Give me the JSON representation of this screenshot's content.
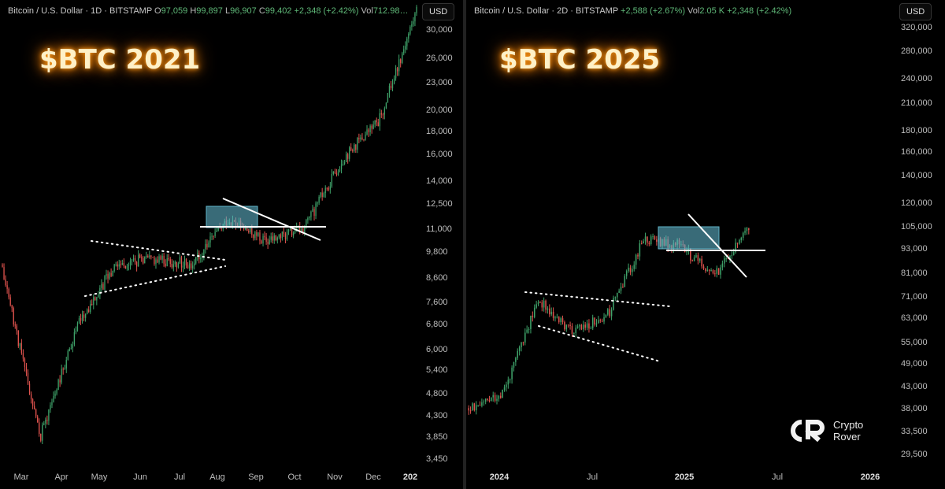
{
  "left": {
    "legend": {
      "symbol": "Bitcoin / U.S. Dollar · 1D · BITSTAMP",
      "o_label": "O",
      "o_value": "97,059",
      "h_label": "H",
      "h_value": "99,897",
      "l_label": "L",
      "l_value": "96,907",
      "c_label": "C",
      "c_value": "99,402",
      "change": "+2,348 (+2.42%)",
      "vol_label": "Vol",
      "vol_value": "712.98…"
    },
    "currency_button": "USD",
    "title": "$BTC 2021"
  },
  "right": {
    "legend": {
      "symbol": "Bitcoin / U.S. Dollar · 2D · BITSTAMP",
      "change1": "+2,588 (+2.67%)",
      "vol_label": "Vol",
      "vol_value": "2.05 K",
      "change2": "+2,348 (+2.42%)"
    },
    "currency_button": "USD",
    "title": "$BTC 2025"
  },
  "brand": {
    "line1": "Crypto",
    "line2": "Rover"
  },
  "colors": {
    "up": "#3fa36a",
    "down": "#e0534e",
    "box": "#5fb3c8",
    "glow": "#ff8a00"
  },
  "chart_data": [
    {
      "type": "candlestick",
      "title": "$BTC 2021",
      "interval": "1D",
      "y_scale": "log",
      "ylim": [
        3200,
        36000
      ],
      "y_ticks": [
        "30,000",
        "26,000",
        "23,000",
        "20,000",
        "18,000",
        "16,000",
        "14,000",
        "12,500",
        "11,000",
        "9,800",
        "8,600",
        "7,600",
        "6,800",
        "6,000",
        "5,400",
        "4,800",
        "4,300",
        "3,850",
        "3,450"
      ],
      "x_ticks": [
        "Mar",
        "Apr",
        "May",
        "Jun",
        "Jul",
        "Aug",
        "Sep",
        "Oct",
        "Nov",
        "Dec",
        "202"
      ],
      "key_points": [
        {
          "month": "Mar",
          "price": 9000
        },
        {
          "month": "Mar",
          "price": 3850
        },
        {
          "month": "Apr",
          "price": 6800
        },
        {
          "month": "May",
          "price": 9200
        },
        {
          "month": "Jun",
          "price": 9500
        },
        {
          "month": "Jul",
          "price": 9200
        },
        {
          "month": "Aug",
          "price": 11500
        },
        {
          "month": "Sep",
          "price": 10300
        },
        {
          "month": "Oct",
          "price": 11000
        },
        {
          "month": "Nov",
          "price": 15500
        },
        {
          "month": "Dec",
          "price": 19000
        },
        {
          "month": "202",
          "price": 33000
        }
      ]
    },
    {
      "type": "candlestick",
      "title": "$BTC 2025",
      "interval": "2D",
      "y_scale": "log",
      "ylim": [
        27000,
        345000
      ],
      "y_ticks": [
        "320,000",
        "280,000",
        "240,000",
        "210,000",
        "180,000",
        "160,000",
        "140,000",
        "120,000",
        "105,000",
        "93,000",
        "81,000",
        "71,000",
        "63,000",
        "55,000",
        "49,000",
        "43,000",
        "38,000",
        "33,500",
        "29,500"
      ],
      "x_ticks": [
        "2024",
        "Jul",
        "2025",
        "Jul",
        "2026"
      ],
      "key_points": [
        {
          "period": "2024",
          "price": 38000
        },
        {
          "period": "2024",
          "price": 42000
        },
        {
          "period": "2024",
          "price": 70000
        },
        {
          "period": "Jul",
          "price": 58000
        },
        {
          "period": "Jul",
          "price": 65000
        },
        {
          "period": "2025",
          "price": 98000
        },
        {
          "period": "2025",
          "price": 95000
        },
        {
          "period": "2025",
          "price": 80000
        },
        {
          "period": "Jul",
          "price": 103000
        }
      ]
    }
  ]
}
